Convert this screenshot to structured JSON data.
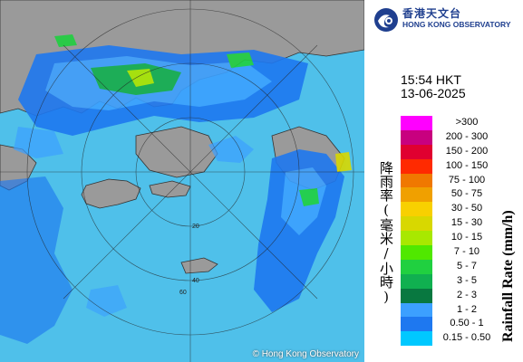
{
  "header": {
    "agency_cn": "香港天文台",
    "agency_en": "HONG KONG OBSERVATORY"
  },
  "timestamp": {
    "time": "15:54 HKT",
    "date": "13-06-2025"
  },
  "legend": {
    "title_en": "Rainfall Rate (mm/h)",
    "title_cn": "降雨率(毫米/小時)",
    "entries": [
      {
        "label": ">300",
        "color": "#ff00ff"
      },
      {
        "label": "200 - 300",
        "color": "#c8007f"
      },
      {
        "label": "150 - 200",
        "color": "#e00030"
      },
      {
        "label": "100 - 150",
        "color": "#ff2a00"
      },
      {
        "label": "75 - 100",
        "color": "#f07800"
      },
      {
        "label": "50 - 75",
        "color": "#f0a000"
      },
      {
        "label": "30 - 50",
        "color": "#f8d000"
      },
      {
        "label": "15 - 30",
        "color": "#d8d800"
      },
      {
        "label": "10 - 15",
        "color": "#a8e800"
      },
      {
        "label": "7 - 10",
        "color": "#50e800"
      },
      {
        "label": "5 - 7",
        "color": "#20d040"
      },
      {
        "label": "3 - 5",
        "color": "#10b050"
      },
      {
        "label": "2 - 3",
        "color": "#087840"
      },
      {
        "label": "1 - 2",
        "color": "#3ca0ff"
      },
      {
        "label": "0.50 - 1",
        "color": "#1e78f0"
      },
      {
        "label": "0.15 - 0.50",
        "color": "#00c8ff"
      }
    ]
  },
  "map": {
    "copyright": "© Hong Kong Observatory",
    "range_rings": [
      "20",
      "40",
      "60"
    ],
    "sea_color": "#4fc0ea",
    "land_color": "#9a9a9a"
  }
}
